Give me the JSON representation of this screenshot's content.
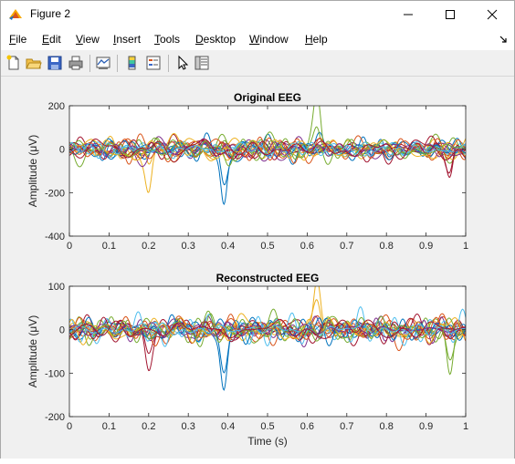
{
  "window": {
    "title": "Figure 2",
    "controls": {
      "minimize": "—",
      "maximize": "☐",
      "close": "✕"
    }
  },
  "menubar": {
    "items": [
      {
        "mnemonic": "F",
        "rest": "ile"
      },
      {
        "mnemonic": "E",
        "rest": "dit"
      },
      {
        "mnemonic": "V",
        "rest": "iew"
      },
      {
        "mnemonic": "I",
        "rest": "nsert"
      },
      {
        "mnemonic": "T",
        "rest": "ools"
      },
      {
        "mnemonic": "D",
        "rest": "esktop"
      },
      {
        "mnemonic": "W",
        "rest": "indow"
      },
      {
        "mnemonic": "H",
        "rest": "elp"
      }
    ]
  },
  "toolbar": {
    "icons": [
      "new-figure-icon",
      "open-file-icon",
      "save-icon",
      "print-icon",
      "link-plot-icon",
      "colorbar-icon",
      "legend-icon",
      "pointer-icon",
      "property-inspector-icon"
    ]
  },
  "chart_data": [
    {
      "type": "line",
      "title": "Original EEG",
      "xlabel": "",
      "ylabel": "Amplitude (μV)",
      "xlim": [
        0,
        1
      ],
      "ylim": [
        -400,
        200
      ],
      "xticks": [
        "0",
        "0.1",
        "0.2",
        "0.3",
        "0.4",
        "0.5",
        "0.6",
        "0.7",
        "0.8",
        "0.9",
        "1"
      ],
      "yticks": [
        "200",
        "0",
        "-200",
        "-400"
      ],
      "ytick_values": [
        200,
        0,
        -200,
        -400
      ],
      "grid": false,
      "series_colors": [
        "#0072BD",
        "#D95319",
        "#EDB120",
        "#7E2F8E",
        "#77AC30",
        "#4DBEEE",
        "#A2142F"
      ],
      "series_count": 21,
      "amplitude": 55,
      "features": [
        {
          "x": 0.39,
          "y": -285
        },
        {
          "x": 0.2,
          "y": -205
        },
        {
          "x": 0.625,
          "y": 225
        },
        {
          "x": 0.96,
          "y": -160
        }
      ]
    },
    {
      "type": "line",
      "title": "Reconstructed EEG",
      "xlabel": "Time (s)",
      "ylabel": "Amplitude (μV)",
      "xlim": [
        0,
        1
      ],
      "ylim": [
        -200,
        100
      ],
      "xticks": [
        "0",
        "0.1",
        "0.2",
        "0.3",
        "0.4",
        "0.5",
        "0.6",
        "0.7",
        "0.8",
        "0.9",
        "1"
      ],
      "yticks": [
        "100",
        "0",
        "-100",
        "-200"
      ],
      "ytick_values": [
        100,
        0,
        -100,
        -200
      ],
      "grid": false,
      "series_colors": [
        "#0072BD",
        "#D95319",
        "#EDB120",
        "#7E2F8E",
        "#77AC30",
        "#4DBEEE",
        "#A2142F"
      ],
      "series_count": 21,
      "amplitude": 32,
      "features": [
        {
          "x": 0.39,
          "y": -140
        },
        {
          "x": 0.625,
          "y": 110
        },
        {
          "x": 0.96,
          "y": -105
        },
        {
          "x": 0.2,
          "y": -80
        }
      ]
    }
  ]
}
